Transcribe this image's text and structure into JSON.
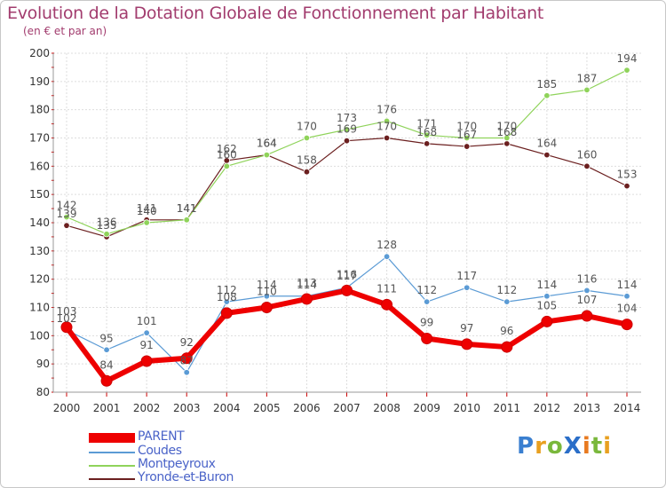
{
  "title": "Evolution de la Dotation Globale de Fonctionnement par Habitant",
  "subtitle": "(en € et par an)",
  "logo": {
    "text": "ProXiti",
    "letters": [
      {
        "ch": "P",
        "color": "#3a7fd0"
      },
      {
        "ch": "r",
        "color": "#e8a020"
      },
      {
        "ch": "o",
        "color": "#7ab83c"
      },
      {
        "ch": "X",
        "color": "#2a6ec8"
      },
      {
        "ch": "i",
        "color": "#e87a20"
      },
      {
        "ch": "t",
        "color": "#7ab83c"
      },
      {
        "ch": "i",
        "color": "#e8a020"
      }
    ]
  },
  "chart_data": {
    "type": "line",
    "title": "Evolution de la Dotation Globale de Fonctionnement par Habitant",
    "subtitle": "(en € et par an)",
    "xlabel": "",
    "ylabel": "",
    "ylim": [
      80,
      200
    ],
    "y_ticks": [
      80,
      90,
      100,
      110,
      120,
      130,
      140,
      150,
      160,
      170,
      180,
      190,
      200
    ],
    "grid": true,
    "legend_position": "bottom-left",
    "x": [
      "2000",
      "2001",
      "2002",
      "2003",
      "2004",
      "2005",
      "2006",
      "2007",
      "2008",
      "2009",
      "2010",
      "2011",
      "2012",
      "2013",
      "2014"
    ],
    "series": [
      {
        "name": "PARENT",
        "color": "#ee0000",
        "values": [
          103,
          84,
          91,
          92,
          108,
          110,
          113,
          116,
          111,
          99,
          97,
          96,
          105,
          107,
          104
        ]
      },
      {
        "name": "Coudes",
        "color": "#5b9bd5",
        "values": [
          102,
          95,
          101,
          87,
          112,
          114,
          114,
          117,
          128,
          112,
          117,
          112,
          114,
          116,
          114
        ]
      },
      {
        "name": "Montpeyroux",
        "color": "#8fd35a",
        "values": [
          142,
          136,
          140,
          141,
          160,
          164,
          170,
          173,
          176,
          171,
          170,
          170,
          185,
          187,
          194
        ]
      },
      {
        "name": "Yronde-et-Buron",
        "color": "#6b1f1f",
        "values": [
          139,
          135,
          141,
          141,
          162,
          164,
          158,
          169,
          170,
          168,
          167,
          168,
          164,
          160,
          153
        ]
      }
    ]
  }
}
